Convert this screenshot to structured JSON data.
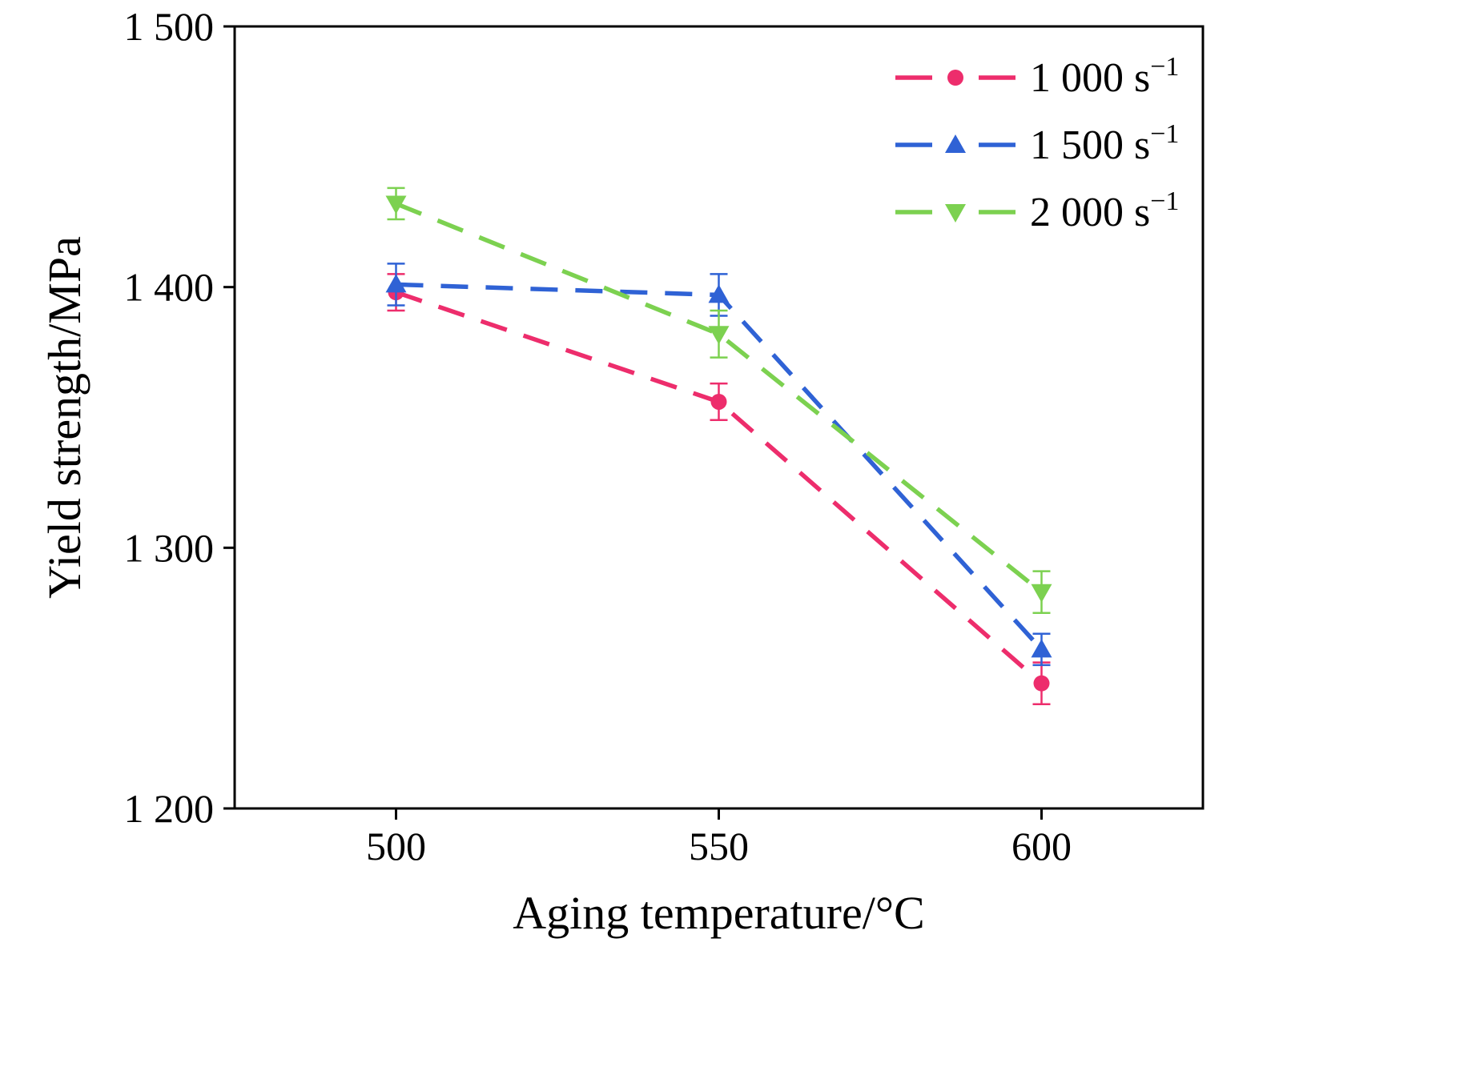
{
  "chart_data": {
    "type": "line",
    "title": "",
    "xlabel": "Aging temperature/°C",
    "ylabel": "Yield strength/MPa",
    "x": [
      500,
      550,
      600
    ],
    "xlim": [
      475,
      625
    ],
    "ylim": [
      1200,
      1500
    ],
    "xticks": [
      500,
      550,
      600
    ],
    "yticks": [
      1200,
      1300,
      1400,
      1500
    ],
    "xtick_labels": [
      "500",
      "550",
      "600"
    ],
    "ytick_labels": [
      "1 200",
      "1 300",
      "1 400",
      "1 500"
    ],
    "grid": false,
    "line_style": "dashed",
    "legend_position": "top-right",
    "axis_color": "#000000",
    "series": [
      {
        "name": "1 000 s⁻¹",
        "marker": "circle",
        "color": "#ED2D6C",
        "values": [
          1398,
          1356,
          1248
        ],
        "errors": [
          7,
          7,
          8
        ]
      },
      {
        "name": "1 500 s⁻¹",
        "marker": "triangle-up",
        "color": "#2F62D5",
        "values": [
          1401,
          1397,
          1261
        ],
        "errors": [
          8,
          8,
          6
        ]
      },
      {
        "name": "2 000 s⁻¹",
        "marker": "triangle-down",
        "color": "#7CD150",
        "values": [
          1432,
          1382,
          1283
        ],
        "errors": [
          6,
          9,
          8
        ]
      }
    ]
  }
}
